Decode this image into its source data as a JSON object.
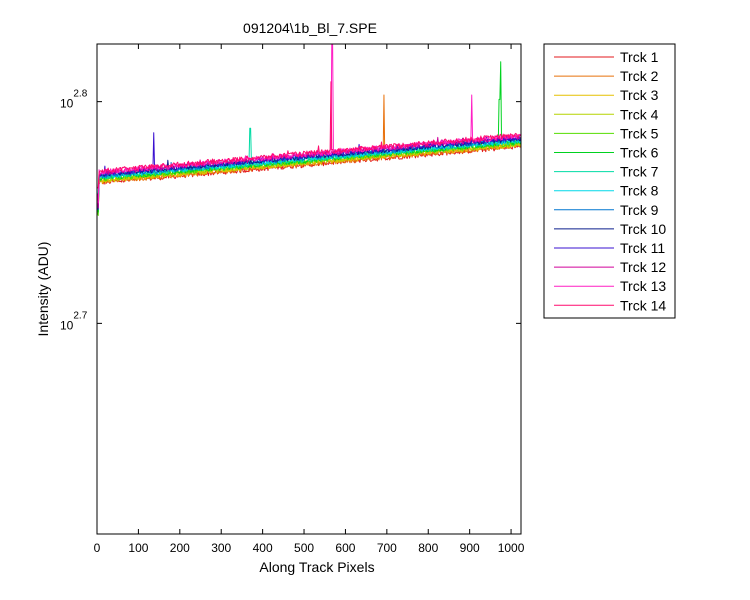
{
  "chart_data": {
    "type": "line",
    "title": "091204\\1b_Bl_7.SPE",
    "xlabel": "Along Track Pixels",
    "ylabel": "Intensity (ADU)",
    "xlim": [
      0,
      1024
    ],
    "ylim_log10": [
      2.605,
      2.826
    ],
    "yscale": "log",
    "grid": false,
    "legend_position": "outside-right",
    "x_ticks": [
      "0",
      "100",
      "200",
      "300",
      "400",
      "500",
      "600",
      "700",
      "800",
      "900",
      "1000"
    ],
    "x_tick_values": [
      0,
      100,
      200,
      300,
      400,
      500,
      600,
      700,
      800,
      900,
      1000
    ],
    "y_ticks": [
      {
        "base": "10",
        "exp": "2.7",
        "log10": 2.7
      },
      {
        "base": "10",
        "exp": "2.8",
        "log10": 2.8
      }
    ],
    "series": [
      {
        "name": "Trck 1",
        "color": "#e31a1c",
        "start_log10": 2.763,
        "end_log10": 2.7795
      },
      {
        "name": "Trck 2",
        "color": "#e8700a",
        "start_log10": 2.7634,
        "end_log10": 2.7799,
        "spikes": [
          [
            693,
            2.803
          ]
        ]
      },
      {
        "name": "Trck 3",
        "color": "#e6c000",
        "start_log10": 2.7638,
        "end_log10": 2.7803
      },
      {
        "name": "Trck 4",
        "color": "#b6d400",
        "start_log10": 2.7642,
        "end_log10": 2.7807
      },
      {
        "name": "Trck 5",
        "color": "#55dd00",
        "start_log10": 2.7646,
        "end_log10": 2.7811
      },
      {
        "name": "Trck 6",
        "color": "#00d21f",
        "start_log10": 2.765,
        "end_log10": 2.7815,
        "spikes": [
          [
            975,
            2.818
          ],
          [
            972,
            2.801
          ]
        ]
      },
      {
        "name": "Trck 7",
        "color": "#00dba4",
        "start_log10": 2.7654,
        "end_log10": 2.7819,
        "spikes": [
          [
            370,
            2.788
          ]
        ]
      },
      {
        "name": "Trck 8",
        "color": "#00d8e8",
        "start_log10": 2.7658,
        "end_log10": 2.7823
      },
      {
        "name": "Trck 9",
        "color": "#0077d0",
        "start_log10": 2.7662,
        "end_log10": 2.7827
      },
      {
        "name": "Trck 10",
        "color": "#0a1e8c",
        "start_log10": 2.7666,
        "end_log10": 2.7831
      },
      {
        "name": "Trck 11",
        "color": "#3a10d0",
        "start_log10": 2.767,
        "end_log10": 2.7835,
        "spikes": [
          [
            137,
            2.786
          ]
        ]
      },
      {
        "name": "Trck 12",
        "color": "#d0009a",
        "start_log10": 2.7674,
        "end_log10": 2.7839
      },
      {
        "name": "Trck 13",
        "color": "#ff1fc4",
        "start_log10": 2.7678,
        "end_log10": 2.7843,
        "spikes": [
          [
            905,
            2.803
          ],
          [
            568,
            2.827
          ]
        ]
      },
      {
        "name": "Trck 14",
        "color": "#ff0a6e",
        "start_log10": 2.7682,
        "end_log10": 2.7847,
        "spikes": [
          [
            565,
            2.809
          ]
        ]
      }
    ]
  }
}
